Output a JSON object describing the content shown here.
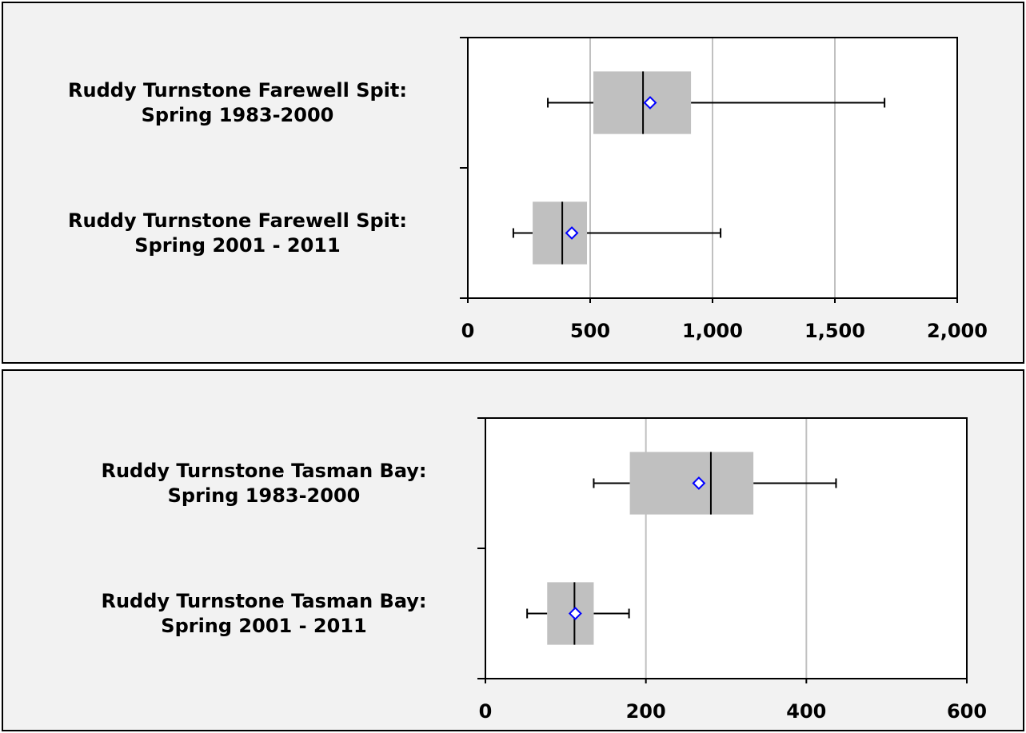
{
  "chart_data": [
    {
      "type": "box",
      "categories": [
        "Ruddy Turnstone Farewell Spit:\nSpring 1983-2000",
        "Ruddy Turnstone Farewell Spit:\nSpring 2001 - 2011"
      ],
      "min": [
        327,
        186
      ],
      "q1": [
        513,
        265
      ],
      "median": [
        716,
        386
      ],
      "q3": [
        912,
        487
      ],
      "max": [
        1703,
        1033
      ],
      "mean": [
        745,
        425
      ],
      "xlim": [
        0,
        2000
      ],
      "xticks": [
        0,
        500,
        {
          "value": 1000,
          "label": "1,000"
        },
        {
          "value": 1500,
          "label": "1,500"
        },
        {
          "value": 2000,
          "label": "2,000"
        }
      ],
      "grid": true,
      "box_color": "#c0c0c0",
      "mean_color": "#0000ff"
    },
    {
      "type": "box",
      "categories": [
        "Ruddy Turnstone Tasman Bay:\nSpring 1983-2000",
        "Ruddy Turnstone Tasman Bay:\nSpring 2001 - 2011"
      ],
      "min": [
        135,
        52
      ],
      "q1": [
        180,
        77
      ],
      "median": [
        281,
        111
      ],
      "q3": [
        334,
        135
      ],
      "max": [
        437,
        179
      ],
      "mean": [
        266,
        112
      ],
      "xlim": [
        0,
        600
      ],
      "xticks": [
        0,
        200,
        400,
        600
      ],
      "grid": true,
      "box_color": "#c0c0c0",
      "mean_color": "#0000ff"
    }
  ]
}
